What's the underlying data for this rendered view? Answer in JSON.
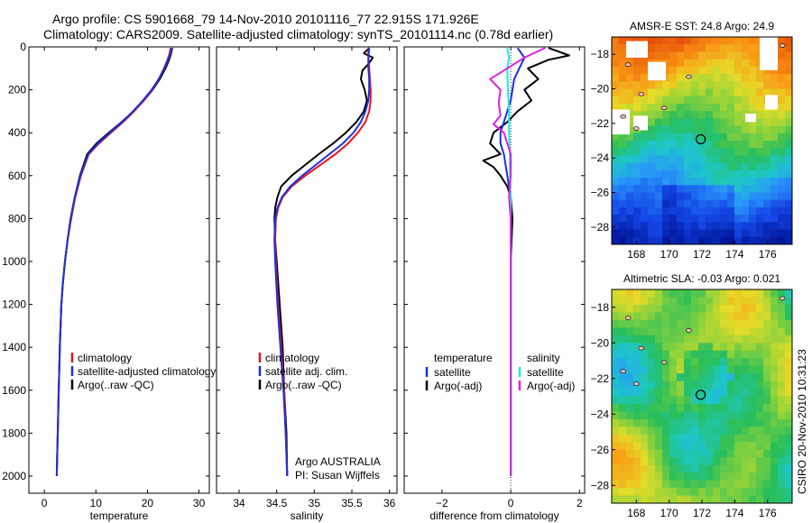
{
  "header": {
    "line1": "Argo profile: CS 5901668_79 14-Nov-2010 20101116_77 22.915S 171.926E",
    "line2": "Climatology: CARS2009. Satellite-adjusted climatology: synTS_20101114.nc (0.78d earlier)"
  },
  "chart_data": [
    {
      "id": "temperature",
      "type": "line",
      "xlabel": "temperature",
      "ylabel": "",
      "xlim": [
        -3,
        32
      ],
      "ylim": [
        2080,
        0
      ],
      "xticks": [
        0,
        10,
        20,
        30
      ],
      "yticks": [
        0,
        200,
        400,
        600,
        800,
        1000,
        1200,
        1400,
        1600,
        1800,
        2000
      ],
      "legend": {
        "position": "lower-right",
        "entries": [
          {
            "label": "climatology",
            "color": "#e8141a"
          },
          {
            "label": "satellite-adjusted climatology",
            "color": "#1a30e0"
          },
          {
            "label": "Argo(..raw -QC)",
            "color": "#000000"
          }
        ]
      },
      "series": [
        {
          "name": "Argo(..raw -QC)",
          "color": "#000000",
          "x": [
            24.8,
            24.6,
            24.2,
            23.5,
            22.4,
            21.0,
            19.3,
            17.3,
            15.0,
            12.5,
            10.1,
            8.3,
            6.9,
            5.9,
            5.1,
            4.5,
            4.0,
            3.6,
            3.3,
            3.0,
            2.8,
            2.6,
            2.5,
            2.4
          ],
          "y": [
            5,
            30,
            60,
            100,
            150,
            200,
            250,
            300,
            350,
            400,
            450,
            500,
            600,
            700,
            800,
            900,
            1000,
            1100,
            1200,
            1400,
            1600,
            1800,
            1900,
            2000
          ]
        },
        {
          "name": "climatology",
          "color": "#e8141a",
          "x": [
            24.5,
            24.3,
            23.9,
            23.2,
            22.2,
            20.9,
            19.3,
            17.4,
            15.3,
            12.9,
            10.6,
            8.6,
            7.1,
            6.0,
            5.2,
            4.5,
            4.0,
            3.6,
            3.3,
            3.0,
            2.8,
            2.6,
            2.5,
            2.4
          ],
          "y": [
            5,
            30,
            60,
            100,
            150,
            200,
            250,
            300,
            350,
            400,
            450,
            500,
            600,
            700,
            800,
            900,
            1000,
            1100,
            1200,
            1400,
            1600,
            1800,
            1900,
            2000
          ]
        },
        {
          "name": "satellite-adjusted climatology",
          "color": "#1a30e0",
          "x": [
            24.7,
            24.5,
            24.0,
            23.3,
            22.2,
            20.8,
            19.1,
            17.2,
            15.1,
            12.7,
            10.4,
            8.5,
            7.0,
            5.9,
            5.1,
            4.5,
            4.0,
            3.6,
            3.3,
            3.0,
            2.8,
            2.6,
            2.5,
            2.4
          ],
          "y": [
            5,
            30,
            60,
            100,
            150,
            200,
            250,
            300,
            350,
            400,
            450,
            500,
            600,
            700,
            800,
            900,
            1000,
            1100,
            1200,
            1400,
            1600,
            1800,
            1900,
            2000
          ]
        }
      ]
    },
    {
      "id": "salinity",
      "type": "line",
      "xlabel": "salinity",
      "ylabel": "",
      "xlim": [
        33.7,
        36.1
      ],
      "ylim": [
        2080,
        0
      ],
      "xticks": [
        34,
        34.5,
        35,
        35.5,
        36
      ],
      "xticklabels": [
        "34",
        "34.5",
        "35",
        "35.5",
        "36"
      ],
      "legend": {
        "position": "lower-right",
        "entries": [
          {
            "label": "climatology",
            "color": "#e8141a"
          },
          {
            "label": "satellite adj. clim.",
            "color": "#1a30e0"
          },
          {
            "label": "Argo(..raw -QC)",
            "color": "#000000"
          }
        ]
      },
      "annotation": [
        "Argo AUSTRALIA",
        "PI: Susan Wijffels"
      ],
      "series": [
        {
          "name": "Argo(..raw -QC)",
          "color": "#000000",
          "x": [
            35.73,
            35.66,
            35.78,
            35.72,
            35.64,
            35.62,
            35.67,
            35.7,
            35.66,
            35.56,
            35.42,
            35.25,
            35.06,
            34.88,
            34.7,
            34.56,
            34.51,
            34.48,
            34.47,
            34.48,
            34.5,
            34.54,
            34.58,
            34.6,
            34.63,
            34.64
          ],
          "y": [
            5,
            30,
            50,
            80,
            110,
            150,
            200,
            250,
            300,
            350,
            400,
            450,
            500,
            550,
            600,
            650,
            700,
            750,
            800,
            900,
            1000,
            1200,
            1400,
            1600,
            1800,
            2000
          ]
        },
        {
          "name": "climatology",
          "color": "#e8141a",
          "x": [
            35.72,
            35.72,
            35.73,
            35.74,
            35.75,
            35.75,
            35.73,
            35.68,
            35.58,
            35.45,
            35.28,
            35.08,
            34.88,
            34.7,
            34.58,
            34.52,
            34.49,
            34.48,
            34.49,
            34.52,
            34.56,
            34.6,
            34.62,
            34.64
          ],
          "y": [
            5,
            50,
            100,
            150,
            200,
            250,
            300,
            350,
            400,
            450,
            500,
            550,
            600,
            650,
            700,
            750,
            800,
            900,
            1000,
            1200,
            1400,
            1600,
            1800,
            2000
          ]
        },
        {
          "name": "satellite adj. clim.",
          "color": "#1a30e0",
          "x": [
            35.73,
            35.72,
            35.72,
            35.73,
            35.73,
            35.72,
            35.68,
            35.62,
            35.52,
            35.38,
            35.2,
            35.02,
            34.84,
            34.68,
            34.57,
            34.51,
            34.48,
            34.47,
            34.48,
            34.51,
            34.55,
            34.59,
            34.62,
            34.64
          ],
          "y": [
            5,
            50,
            100,
            150,
            200,
            250,
            300,
            350,
            400,
            450,
            500,
            550,
            600,
            650,
            700,
            750,
            800,
            900,
            1000,
            1200,
            1400,
            1600,
            1800,
            2000
          ]
        }
      ]
    },
    {
      "id": "difference",
      "type": "line",
      "xlabel": "difference from climatology",
      "ylabel": "",
      "xlim": [
        -3.1,
        2.15
      ],
      "ylim": [
        2080,
        0
      ],
      "xticks": [
        -2,
        0,
        2
      ],
      "reference_line": 0,
      "legend": {
        "position": "lower-center",
        "columns": [
          {
            "title": "temperature",
            "entries": [
              {
                "label": "satellite",
                "color": "#1a30e0"
              },
              {
                "label": "Argo(-adj)",
                "color": "#000000"
              }
            ]
          },
          {
            "title": "salinity",
            "entries": [
              {
                "label": "satellite",
                "color": "#22e8e8"
              },
              {
                "label": "Argo(-adj)",
                "color": "#e020e0"
              }
            ]
          }
        ]
      },
      "series": [
        {
          "name": "temperature Argo(-adj)",
          "color": "#000000",
          "x": [
            1.1,
            1.7,
            1.1,
            0.5,
            0.8,
            0.4,
            0.6,
            0.2,
            -0.1,
            -0.5,
            -0.6,
            -0.3,
            -0.8,
            -0.5,
            -0.3,
            -0.1,
            0.0,
            0.05,
            0.0,
            0.0,
            0.0,
            0.0,
            0.0,
            0.0
          ],
          "y": [
            5,
            40,
            60,
            100,
            150,
            200,
            250,
            300,
            350,
            400,
            450,
            500,
            530,
            560,
            600,
            650,
            700,
            800,
            1000,
            1200,
            1400,
            1600,
            1800,
            2000
          ]
        },
        {
          "name": "temperature satellite",
          "color": "#1a30e0",
          "x": [
            0.2,
            0.4,
            0.25,
            0.1,
            0.05,
            0.0,
            -0.1,
            -0.2,
            -0.3,
            -0.3,
            -0.2,
            -0.15,
            -0.1,
            -0.05,
            0.0,
            0.0,
            0.0,
            0.0,
            0.0,
            0.0
          ],
          "y": [
            5,
            50,
            100,
            150,
            200,
            250,
            300,
            350,
            400,
            450,
            500,
            550,
            600,
            650,
            700,
            800,
            1000,
            1400,
            1800,
            2000
          ]
        },
        {
          "name": "salinity satellite",
          "color": "#22e8e8",
          "x": [
            -0.1,
            -0.05,
            -0.1,
            -0.08,
            -0.05,
            -0.05,
            -0.03,
            -0.02,
            0.0,
            0.0,
            0.0,
            0.0,
            0.0,
            0.0
          ],
          "y": [
            5,
            50,
            100,
            200,
            300,
            400,
            500,
            600,
            700,
            800,
            1000,
            1400,
            1800,
            2000
          ]
        },
        {
          "name": "salinity Argo(-adj)",
          "color": "#e020e0",
          "x": [
            1.0,
            0.4,
            -0.1,
            -0.6,
            -0.3,
            -0.35,
            -0.3,
            -0.5,
            -0.2,
            -0.1,
            0.0,
            0.0,
            -0.05,
            0.0,
            0.0
          ],
          "y": [
            5,
            50,
            100,
            150,
            200,
            260,
            320,
            360,
            400,
            450,
            500,
            600,
            700,
            800,
            2000
          ]
        }
      ]
    },
    {
      "id": "sst-map",
      "type": "heatmap",
      "title": "AMSR-E SST: 24.8 Argo: 24.9",
      "xticks": [
        168,
        170,
        172,
        174,
        176
      ],
      "yticks": [
        -18,
        -20,
        -22,
        -24,
        -26,
        -28
      ],
      "xlim": [
        166.5,
        177.5
      ],
      "ylim": [
        -29,
        -17
      ],
      "marker": {
        "lon": 171.926,
        "lat": -22.915
      },
      "sst": 24.8,
      "argo": 24.9
    },
    {
      "id": "sla-map",
      "type": "heatmap",
      "title": "Altimetric SLA: -0.03 Argo: 0.021",
      "xticks": [
        168,
        170,
        172,
        174,
        176
      ],
      "yticks": [
        -18,
        -20,
        -22,
        -24,
        -26,
        -28
      ],
      "xlim": [
        166.5,
        177.5
      ],
      "ylim": [
        -29,
        -17
      ],
      "marker": {
        "lon": 171.926,
        "lat": -22.915
      },
      "sla": -0.03,
      "argo": 0.021
    }
  ],
  "footer": {
    "stamp": "CSIRO 20-Nov-2010 10:31:23"
  }
}
